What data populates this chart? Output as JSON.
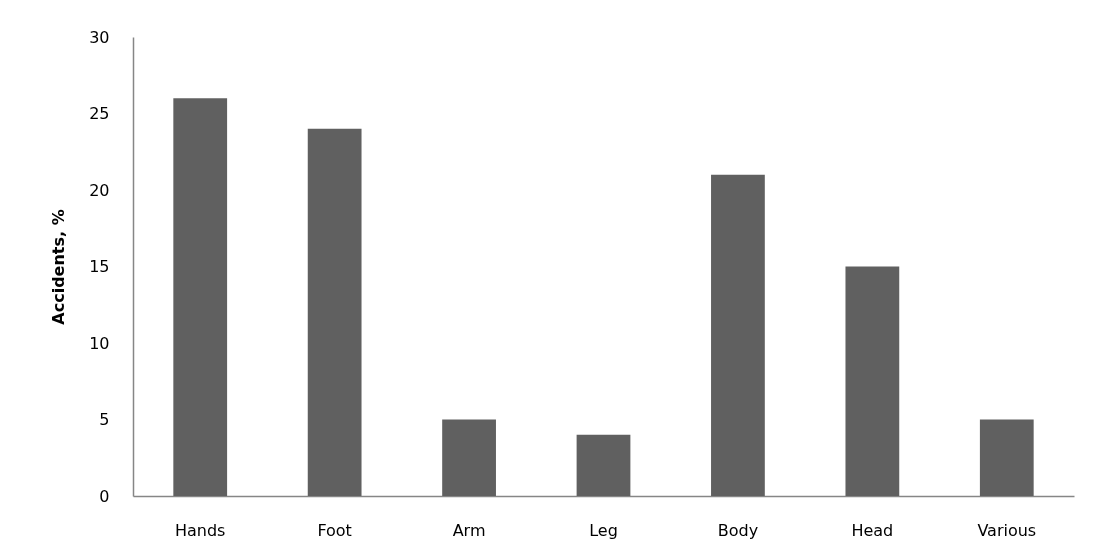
{
  "chart_data": {
    "type": "bar",
    "ylabel": "Accidents, %",
    "categories": [
      "Hands",
      "Foot",
      "Arm",
      "Leg",
      "Body",
      "Head",
      "Various"
    ],
    "values": [
      26,
      24,
      5,
      4,
      21,
      15,
      5
    ],
    "color": "#606060",
    "ylim": [
      0,
      30
    ],
    "yticks": [
      0,
      5,
      10,
      15,
      20,
      25,
      30
    ],
    "grid": false
  }
}
